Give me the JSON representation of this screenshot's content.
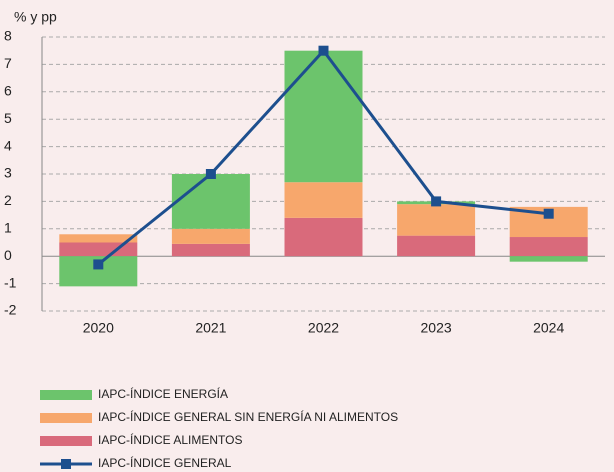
{
  "chart_data": {
    "type": "bar",
    "y_label": "% y pp",
    "categories": [
      "2020",
      "2021",
      "2022",
      "2023",
      "2024"
    ],
    "series": [
      {
        "name": "IAPC-ÍNDICE ENERGÍA",
        "color": "#6cc46c",
        "values": [
          -1.1,
          2.0,
          4.8,
          0.1,
          -0.2
        ]
      },
      {
        "name": "IAPC-ÍNDICE GENERAL SIN ENERGÍA NI ALIMENTOS",
        "color": "#f7a76c",
        "values": [
          0.3,
          0.55,
          1.3,
          1.15,
          1.1
        ]
      },
      {
        "name": "IAPC-ÍNDICE ALIMENTOS",
        "color": "#d96a7b",
        "values": [
          0.5,
          0.45,
          1.4,
          0.75,
          0.7
        ]
      },
      {
        "name": "IAPC-ÍNDICE GENERAL",
        "color": "#1d4f8e",
        "type": "line",
        "values": [
          -0.3,
          3.0,
          7.5,
          2.0,
          1.55
        ]
      }
    ],
    "stack_order": [
      2,
      1,
      0
    ],
    "ylim": [
      -2,
      8
    ],
    "yticks": [
      -2,
      -1,
      0,
      1,
      2,
      3,
      4,
      5,
      6,
      7,
      8
    ],
    "grid": true
  }
}
